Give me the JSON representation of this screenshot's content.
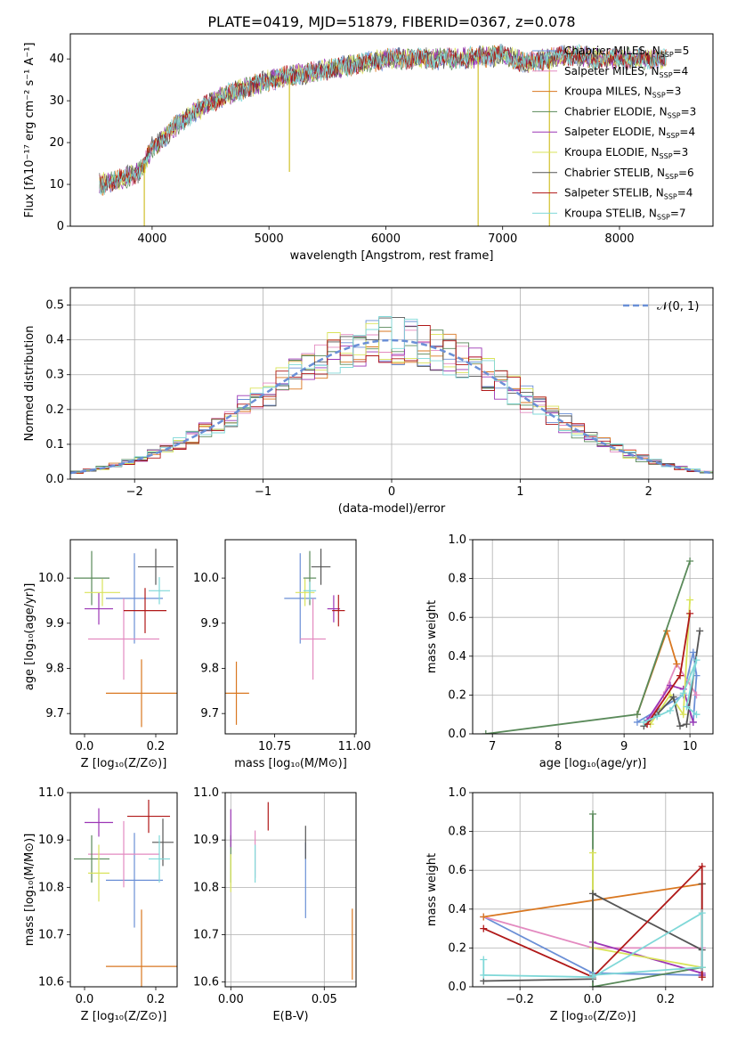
{
  "title": "PLATE=0419, MJD=51879, FIBERID=0367, z=0.078",
  "series": [
    {
      "key": "chab_miles",
      "label": "Chabrier MILES, N",
      "nssp": "=5",
      "color": "#6a8fd6"
    },
    {
      "key": "salp_miles",
      "label": "Salpeter MILES, N",
      "nssp": "=4",
      "color": "#e38ac0"
    },
    {
      "key": "krou_miles",
      "label": "Kroupa MILES, N",
      "nssp": "=3",
      "color": "#d97720"
    },
    {
      "key": "chab_elodie",
      "label": "Chabrier ELODIE, N",
      "nssp": "=3",
      "color": "#5a8a5a"
    },
    {
      "key": "salp_elodie",
      "label": "Salpeter ELODIE, N",
      "nssp": "=4",
      "color": "#9c36b5"
    },
    {
      "key": "krou_elodie",
      "label": "Kroupa ELODIE, N",
      "nssp": "=3",
      "color": "#d9e35a"
    },
    {
      "key": "chab_stelib",
      "label": "Chabrier STELIB, N",
      "nssp": "=6",
      "color": "#555555"
    },
    {
      "key": "salp_stelib",
      "label": "Salpeter STELIB, N",
      "nssp": "=4",
      "color": "#b01818"
    },
    {
      "key": "krou_stelib",
      "label": "Kroupa STELIB, N",
      "nssp": "=7",
      "color": "#7fd8d8"
    }
  ],
  "nssp_subscript": "SSP",
  "chart_data": [
    {
      "id": "spectrum",
      "type": "line",
      "xlabel": "wavelength [Angstrom, rest frame]",
      "ylabel": "Flux [fλ10⁻¹⁷ erg cm⁻² s⁻¹ A⁻¹]",
      "xlim": [
        3300,
        8800
      ],
      "ylim": [
        0,
        46
      ],
      "xticks": [
        4000,
        5000,
        6000,
        7000,
        8000
      ],
      "yticks": [
        0,
        10,
        20,
        30,
        40
      ],
      "grid": false,
      "legend": "right",
      "continuum": [
        [
          3550,
          10
        ],
        [
          3700,
          11
        ],
        [
          3800,
          12
        ],
        [
          3900,
          13
        ],
        [
          4000,
          19
        ],
        [
          4100,
          21
        ],
        [
          4200,
          24
        ],
        [
          4300,
          26
        ],
        [
          4400,
          28
        ],
        [
          4600,
          31
        ],
        [
          4800,
          33
        ],
        [
          5000,
          35
        ],
        [
          5200,
          36
        ],
        [
          5400,
          37
        ],
        [
          5600,
          38
        ],
        [
          5800,
          39
        ],
        [
          6000,
          40
        ],
        [
          6200,
          40
        ],
        [
          6500,
          40
        ],
        [
          6800,
          40.5
        ],
        [
          7000,
          41
        ],
        [
          7200,
          39
        ],
        [
          7400,
          40
        ],
        [
          7600,
          41
        ],
        [
          7800,
          40
        ],
        [
          8000,
          40
        ],
        [
          8200,
          40
        ],
        [
          8400,
          40
        ]
      ],
      "absorption_lines": [
        [
          3933,
          0
        ],
        [
          5175,
          13
        ],
        [
          6790,
          0
        ],
        [
          7400,
          0
        ]
      ]
    },
    {
      "id": "residuals",
      "type": "histogram",
      "xlabel": "(data-model)/error",
      "ylabel": "Normed distribution",
      "xlim": [
        -2.5,
        2.5
      ],
      "ylim": [
        0,
        0.55
      ],
      "xticks": [
        -2,
        -1,
        0,
        1,
        2
      ],
      "yticks": [
        0,
        0.1,
        0.2,
        0.3,
        0.4,
        0.5
      ],
      "grid": true,
      "legend": "top-right",
      "legend_label": "𝒩(0, 1)",
      "bin_width": 0.1
    },
    {
      "id": "age_vs_Z",
      "type": "scatter",
      "xlabel": "Z [log₁₀(Z/Z⊙)]",
      "ylabel": "age  [log₁₀(age/yr)]",
      "xlim": [
        -0.04,
        0.26
      ],
      "ylim": [
        9.655,
        10.085
      ],
      "xticks": [
        0,
        0.2
      ],
      "yticks": [
        9.7,
        9.8,
        9.9,
        10.0
      ],
      "grid": false,
      "points": [
        {
          "s": 0,
          "x": 0.14,
          "y": 9.955,
          "xerr": 0.08,
          "yerr": 0.1
        },
        {
          "s": 1,
          "x": 0.11,
          "y": 9.865,
          "xerr": 0.1,
          "yerr": 0.09
        },
        {
          "s": 2,
          "x": 0.16,
          "y": 9.745,
          "xerr": 0.1,
          "yerr": 0.075
        },
        {
          "s": 3,
          "x": 0.02,
          "y": 10.0,
          "xerr": 0.05,
          "yerr": 0.06
        },
        {
          "s": 4,
          "x": 0.04,
          "y": 9.932,
          "xerr": 0.04,
          "yerr": 0.035
        },
        {
          "s": 5,
          "x": 0.05,
          "y": 9.968,
          "xerr": 0.05,
          "yerr": 0.03
        },
        {
          "s": 6,
          "x": 0.2,
          "y": 10.025,
          "xerr": 0.05,
          "yerr": 0.04
        },
        {
          "s": 7,
          "x": 0.17,
          "y": 9.928,
          "xerr": 0.06,
          "yerr": 0.05
        },
        {
          "s": 8,
          "x": 0.21,
          "y": 9.972,
          "xerr": 0.03,
          "yerr": 0.03
        }
      ]
    },
    {
      "id": "age_vs_mass",
      "type": "scatter",
      "xlabel": "mass [log₁₀(M/M⊙)]",
      "ylabel": "",
      "xlim": [
        10.595,
        11.005
      ],
      "ylim": [
        9.655,
        10.085
      ],
      "xticks": [
        10.75,
        11.0
      ],
      "yticks": [
        9.7,
        9.8,
        9.9,
        10.0
      ],
      "grid": false,
      "points": [
        {
          "s": 0,
          "x": 10.83,
          "y": 9.955,
          "xerr": 0.05,
          "yerr": 0.1
        },
        {
          "s": 1,
          "x": 10.87,
          "y": 9.865,
          "xerr": 0.04,
          "yerr": 0.09
        },
        {
          "s": 2,
          "x": 10.63,
          "y": 9.745,
          "xerr": 0.04,
          "yerr": 0.07
        },
        {
          "s": 3,
          "x": 10.86,
          "y": 10.0,
          "xerr": 0.02,
          "yerr": 0.06
        },
        {
          "s": 4,
          "x": 10.935,
          "y": 9.932,
          "xerr": 0.02,
          "yerr": 0.03
        },
        {
          "s": 5,
          "x": 10.845,
          "y": 9.968,
          "xerr": 0.03,
          "yerr": 0.03
        },
        {
          "s": 6,
          "x": 10.895,
          "y": 10.025,
          "xerr": 0.03,
          "yerr": 0.04
        },
        {
          "s": 7,
          "x": 10.95,
          "y": 9.928,
          "xerr": 0.02,
          "yerr": 0.035
        },
        {
          "s": 8,
          "x": 10.86,
          "y": 9.972,
          "xerr": 0.02,
          "yerr": 0.02
        }
      ]
    },
    {
      "id": "weight_vs_age",
      "type": "line",
      "xlabel": "age  [log₁₀(age/yr)]",
      "ylabel": "mass weight",
      "xlim": [
        6.7,
        10.35
      ],
      "ylim": [
        0,
        1
      ],
      "xticks": [
        7,
        8,
        9,
        10
      ],
      "yticks": [
        0,
        0.2,
        0.4,
        0.6,
        0.8,
        1.0
      ],
      "grid": true,
      "lines": [
        {
          "s": 0,
          "x": [
            9.2,
            9.9,
            10.05,
            10.1,
            10.05
          ],
          "y": [
            0.06,
            0.2,
            0.42,
            0.3,
            0.06
          ]
        },
        {
          "s": 1,
          "x": [
            9.35,
            9.6,
            9.8,
            10.1
          ],
          "y": [
            0.05,
            0.2,
            0.36,
            0.2
          ]
        },
        {
          "s": 2,
          "x": [
            9.2,
            9.65,
            9.8
          ],
          "y": [
            0.1,
            0.53,
            0.36
          ]
        },
        {
          "s": 3,
          "x": [
            6.9,
            9.2,
            10.0
          ],
          "y": [
            0.0,
            0.1,
            0.89
          ]
        },
        {
          "s": 4,
          "x": [
            9.35,
            9.7,
            9.9,
            10.05
          ],
          "y": [
            0.07,
            0.25,
            0.23,
            0.06
          ]
        },
        {
          "s": 5,
          "x": [
            9.4,
            9.7,
            9.9,
            10.0
          ],
          "y": [
            0.05,
            0.2,
            0.1,
            0.69
          ]
        },
        {
          "s": 6,
          "x": [
            9.3,
            9.5,
            9.75,
            9.85,
            9.95,
            10.15
          ],
          "y": [
            0.04,
            0.1,
            0.19,
            0.04,
            0.05,
            0.53
          ]
        },
        {
          "s": 7,
          "x": [
            9.35,
            9.85,
            10.0
          ],
          "y": [
            0.05,
            0.3,
            0.62
          ]
        },
        {
          "s": 8,
          "x": [
            9.3,
            9.5,
            9.7,
            9.9,
            10.1,
            9.95,
            10.1
          ],
          "y": [
            0.06,
            0.09,
            0.12,
            0.21,
            0.38,
            0.14,
            0.1
          ]
        }
      ]
    },
    {
      "id": "mass_vs_Z",
      "type": "scatter",
      "xlabel": "Z [log₁₀(Z/Z⊙)]",
      "ylabel": "mass [log₁₀(M/M⊙)]",
      "xlim": [
        -0.04,
        0.26
      ],
      "ylim": [
        10.59,
        11.0
      ],
      "xticks": [
        0,
        0.2
      ],
      "yticks": [
        10.6,
        10.7,
        10.8,
        10.9,
        11.0
      ],
      "grid": false,
      "points": [
        {
          "s": 0,
          "x": 0.14,
          "y": 10.815,
          "xerr": 0.08,
          "yerr": 0.1
        },
        {
          "s": 1,
          "x": 0.11,
          "y": 10.87,
          "xerr": 0.1,
          "yerr": 0.07
        },
        {
          "s": 2,
          "x": 0.16,
          "y": 10.633,
          "xerr": 0.1,
          "yerr": 0.12
        },
        {
          "s": 3,
          "x": 0.02,
          "y": 10.86,
          "xerr": 0.05,
          "yerr": 0.05
        },
        {
          "s": 4,
          "x": 0.04,
          "y": 10.937,
          "xerr": 0.04,
          "yerr": 0.03
        },
        {
          "s": 5,
          "x": 0.04,
          "y": 10.83,
          "xerr": 0.03,
          "yerr": 0.06
        },
        {
          "s": 6,
          "x": 0.22,
          "y": 10.895,
          "xerr": 0.03,
          "yerr": 0.05
        },
        {
          "s": 7,
          "x": 0.18,
          "y": 10.95,
          "xerr": 0.06,
          "yerr": 0.035
        },
        {
          "s": 8,
          "x": 0.21,
          "y": 10.86,
          "xerr": 0.03,
          "yerr": 0.05
        }
      ]
    },
    {
      "id": "mass_vs_ebv",
      "type": "scatter",
      "xlabel": "E(B-V)",
      "ylabel": "",
      "xlim": [
        -0.003,
        0.067
      ],
      "ylim": [
        10.59,
        11.0
      ],
      "xticks": [
        0.0,
        0.05
      ],
      "yticks": [
        10.6,
        10.7,
        10.8,
        10.9,
        11.0
      ],
      "grid": true,
      "points": [
        {
          "s": 0,
          "x": 0.04,
          "y": 10.815,
          "xerr": 0,
          "yerr": 0.08
        },
        {
          "s": 1,
          "x": 0.013,
          "y": 10.87,
          "xerr": 0,
          "yerr": 0.05
        },
        {
          "s": 2,
          "x": 0.065,
          "y": 10.68,
          "xerr": 0,
          "yerr": 0.075
        },
        {
          "s": 3,
          "x": 0.0,
          "y": 10.86,
          "xerr": 0,
          "yerr": 0.05
        },
        {
          "s": 4,
          "x": 0.0,
          "y": 10.925,
          "xerr": 0,
          "yerr": 0.04
        },
        {
          "s": 5,
          "x": 0.0,
          "y": 10.83,
          "xerr": 0,
          "yerr": 0.04
        },
        {
          "s": 6,
          "x": 0.04,
          "y": 10.895,
          "xerr": 0,
          "yerr": 0.035
        },
        {
          "s": 7,
          "x": 0.02,
          "y": 10.95,
          "xerr": 0,
          "yerr": 0.03
        },
        {
          "s": 8,
          "x": 0.013,
          "y": 10.85,
          "xerr": 0,
          "yerr": 0.04
        }
      ]
    },
    {
      "id": "weight_vs_Z",
      "type": "line",
      "xlabel": "Z [log₁₀(Z/Z⊙)]",
      "ylabel": "mass weight",
      "xlim": [
        -0.33,
        0.33
      ],
      "ylim": [
        0,
        1
      ],
      "xticks": [
        -0.2,
        0.0,
        0.2
      ],
      "yticks": [
        0,
        0.2,
        0.4,
        0.6,
        0.8,
        1.0
      ],
      "grid": true,
      "lines": [
        {
          "s": 0,
          "x": [
            -0.3,
            0.0,
            0.3,
            0.3
          ],
          "y": [
            0.36,
            0.07,
            0.06,
            0.2
          ]
        },
        {
          "s": 1,
          "x": [
            -0.3,
            0.0,
            0.3
          ],
          "y": [
            0.36,
            0.2,
            0.2
          ]
        },
        {
          "s": 2,
          "x": [
            -0.3,
            0.3
          ],
          "y": [
            0.36,
            0.53
          ]
        },
        {
          "s": 3,
          "x": [
            0.0,
            0.0,
            0.3
          ],
          "y": [
            0.89,
            0.0,
            0.1
          ]
        },
        {
          "s": 4,
          "x": [
            0.0,
            0.3,
            0.3
          ],
          "y": [
            0.23,
            0.07,
            0.06
          ]
        },
        {
          "s": 5,
          "x": [
            0.0,
            0.0,
            0.3
          ],
          "y": [
            0.69,
            0.2,
            0.1
          ]
        },
        {
          "s": 6,
          "x": [
            -0.3,
            0.0,
            0.0,
            0.3,
            0.3,
            0.3
          ],
          "y": [
            0.03,
            0.04,
            0.48,
            0.19,
            0.53,
            0.05
          ]
        },
        {
          "s": 7,
          "x": [
            -0.3,
            0.0,
            0.3,
            0.3
          ],
          "y": [
            0.3,
            0.05,
            0.62,
            0.05
          ]
        },
        {
          "s": 8,
          "x": [
            -0.3,
            -0.3,
            0.0,
            0.3,
            0.3,
            0.0
          ],
          "y": [
            0.14,
            0.06,
            0.05,
            0.38,
            0.1,
            0.06
          ]
        }
      ]
    }
  ]
}
